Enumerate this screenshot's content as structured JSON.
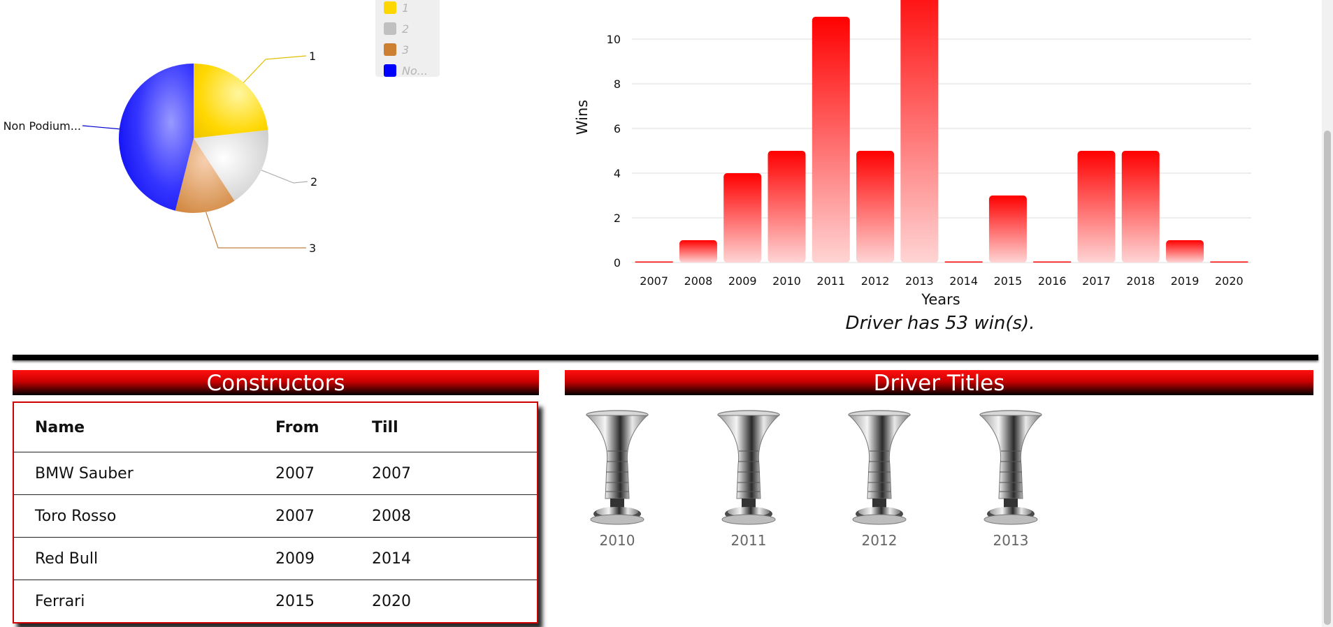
{
  "pie_chart": {
    "chart_data": {
      "type": "pie",
      "slices": [
        {
          "label": "1",
          "value": 53,
          "color": "#FFD700"
        },
        {
          "label": "2",
          "value": 40,
          "color": "#C0C0C0"
        },
        {
          "label": "3",
          "value": 30,
          "color": "#CD7F32"
        },
        {
          "label": "Non Podium...",
          "value": 105,
          "color": "#0000FF"
        }
      ]
    },
    "legend": [
      {
        "label": "1",
        "color": "#FFD700"
      },
      {
        "label": "2",
        "color": "#C0C0C0"
      },
      {
        "label": "3",
        "color": "#CD7F32"
      },
      {
        "label": "No...",
        "color": "#0000FF"
      }
    ]
  },
  "wins_chart": {
    "chart_data": {
      "type": "bar",
      "categories": [
        "2007",
        "2008",
        "2009",
        "2010",
        "2011",
        "2012",
        "2013",
        "2014",
        "2015",
        "2016",
        "2017",
        "2018",
        "2019",
        "2020"
      ],
      "values": [
        0,
        1,
        4,
        5,
        11,
        5,
        13,
        0,
        3,
        0,
        5,
        5,
        1,
        0
      ],
      "xlabel": "Years",
      "ylabel": "Wins",
      "yticks": [
        0,
        2,
        4,
        6,
        8,
        10
      ],
      "bar_color": "#FF0000"
    },
    "caption": "Driver has 53 win(s)."
  },
  "constructors": {
    "title": "Constructors",
    "columns": [
      "Name",
      "From",
      "Till"
    ],
    "rows": [
      [
        "BMW Sauber",
        "2007",
        "2007"
      ],
      [
        "Toro Rosso",
        "2007",
        "2008"
      ],
      [
        "Red Bull",
        "2009",
        "2014"
      ],
      [
        "Ferrari",
        "2015",
        "2020"
      ]
    ]
  },
  "driver_titles": {
    "title": "Driver Titles",
    "years": [
      "2010",
      "2011",
      "2012",
      "2013"
    ]
  }
}
